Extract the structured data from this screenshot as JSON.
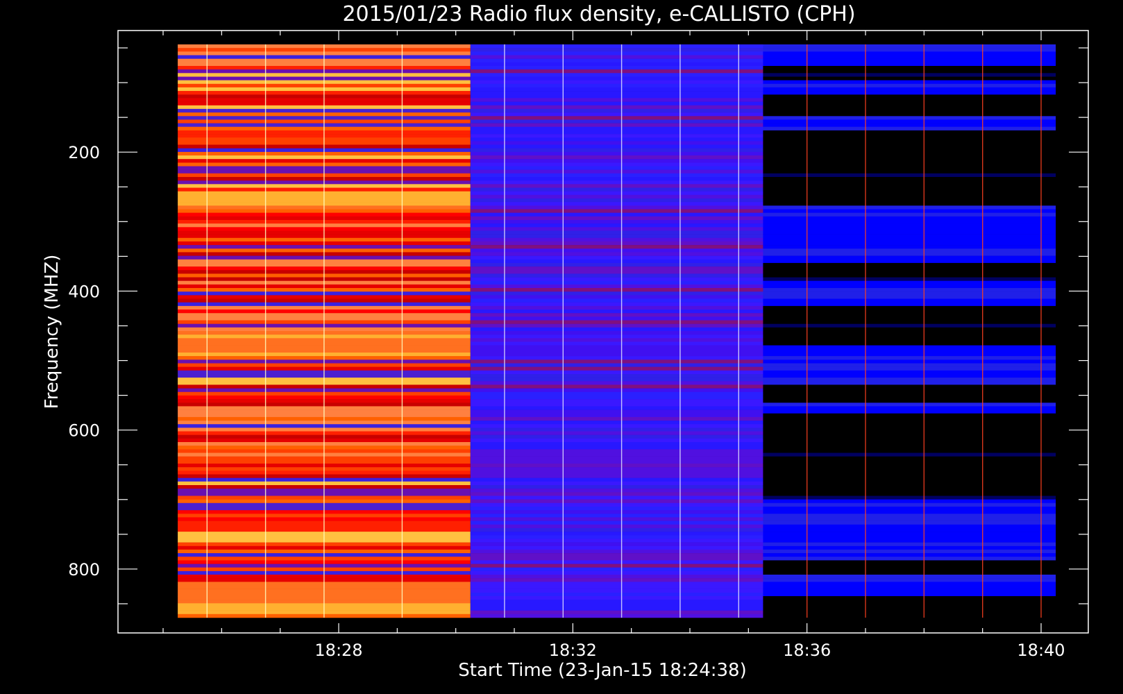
{
  "chart_data": {
    "type": "heatmap",
    "title": "2015/01/23  Radio flux density, e-CALLISTO (CPH)",
    "xlabel": "Start Time (23-Jan-15 18:24:38)",
    "ylabel": "Frequency (MHZ)",
    "x_tick_labels": [
      "18:28",
      "18:32",
      "18:36",
      "18:40"
    ],
    "y_tick_labels": [
      "200",
      "400",
      "600",
      "800"
    ],
    "x_range": [
      "18:24:38",
      "18:40:00"
    ],
    "y_range_mhz": [
      45,
      870
    ],
    "y_axis_inverted": true,
    "grid": false,
    "colormap": "blue-red-yellow",
    "colors": {
      "background": "#000000",
      "low": "#0000ff",
      "mid": "#ff0000",
      "high": "#ffff80"
    },
    "segments": [
      {
        "start": "18:25:15",
        "end": "18:30:15",
        "level": "high (red/yellow)"
      },
      {
        "start": "18:30:15",
        "end": "18:35:15",
        "level": "medium (blue)"
      },
      {
        "start": "18:35:15",
        "end": "18:40:15",
        "level": "low (blue bands on black)"
      }
    ],
    "vertical_spike_times": [
      "18:25:45",
      "18:26:45",
      "18:27:45",
      "18:29:05",
      "18:30:50",
      "18:31:50",
      "18:32:50",
      "18:33:50",
      "18:34:50",
      "18:36:00",
      "18:37:00",
      "18:38:00",
      "18:39:00",
      "18:40:00"
    ]
  }
}
